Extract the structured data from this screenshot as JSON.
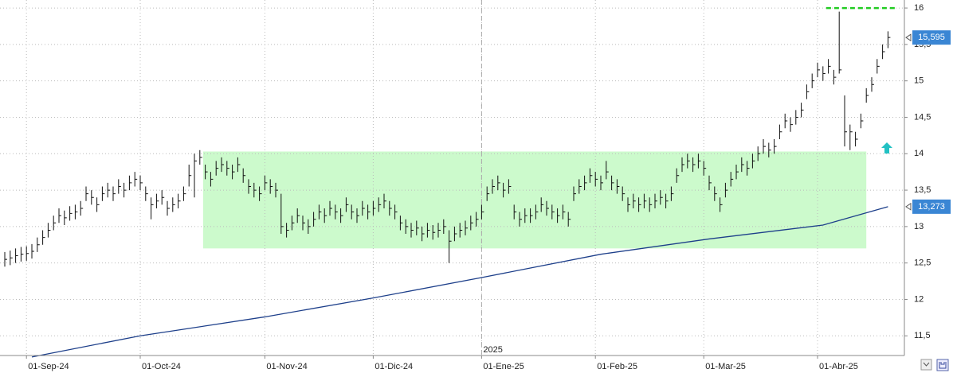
{
  "chart_data": {
    "type": "ohlc",
    "categories": [
      null,
      null,
      null,
      null,
      "01-Sep-24",
      null,
      null,
      null,
      null,
      null,
      null,
      null,
      null,
      null,
      null,
      null,
      null,
      null,
      null,
      null,
      null,
      null,
      null,
      null,
      null,
      "01-Oct-24",
      null,
      null,
      null,
      null,
      null,
      null,
      null,
      null,
      null,
      null,
      null,
      null,
      null,
      null,
      null,
      null,
      null,
      null,
      null,
      null,
      null,
      null,
      "01-Nov-24",
      null,
      null,
      null,
      null,
      null,
      null,
      null,
      null,
      null,
      null,
      null,
      null,
      null,
      null,
      null,
      null,
      null,
      null,
      null,
      "01-Dic-24",
      null,
      null,
      null,
      null,
      null,
      null,
      null,
      null,
      null,
      null,
      null,
      null,
      null,
      null,
      null,
      null,
      null,
      null,
      null,
      "01-Ene-25",
      null,
      null,
      null,
      null,
      null,
      null,
      null,
      null,
      null,
      null,
      null,
      null,
      null,
      null,
      null,
      null,
      null,
      null,
      null,
      null,
      "01-Feb-25",
      null,
      null,
      null,
      null,
      null,
      null,
      null,
      null,
      null,
      null,
      null,
      null,
      null,
      null,
      null,
      null,
      null,
      null,
      null,
      "01-Mar-25",
      null,
      null,
      null,
      null,
      null,
      null,
      null,
      null,
      null,
      null,
      null,
      null,
      null,
      null,
      null,
      null,
      null,
      null,
      null,
      null,
      "01-Abr-25",
      null,
      null,
      null,
      null,
      null,
      null,
      null,
      null,
      null,
      null,
      null,
      null
    ],
    "year_label": "2025",
    "price": {
      "color": "#111111",
      "high": [
        12.65,
        12.67,
        12.7,
        12.72,
        12.73,
        12.76,
        12.85,
        12.95,
        13.05,
        13.15,
        13.25,
        13.22,
        13.28,
        13.3,
        13.35,
        13.55,
        13.5,
        13.4,
        13.55,
        13.6,
        13.55,
        13.65,
        13.6,
        13.7,
        13.75,
        13.7,
        13.55,
        13.4,
        13.45,
        13.5,
        13.35,
        13.4,
        13.45,
        13.55,
        13.85,
        14.0,
        14.05,
        13.85,
        13.75,
        13.9,
        13.95,
        13.9,
        13.85,
        13.95,
        13.8,
        13.65,
        13.6,
        13.55,
        13.7,
        13.65,
        13.6,
        13.45,
        13.05,
        13.15,
        13.25,
        13.15,
        13.1,
        13.2,
        13.3,
        13.25,
        13.35,
        13.3,
        13.25,
        13.4,
        13.3,
        13.25,
        13.35,
        13.3,
        13.35,
        13.4,
        13.45,
        13.35,
        13.3,
        13.15,
        13.1,
        13.05,
        13.08,
        13.0,
        13.05,
        13.02,
        13.05,
        13.1,
        12.95,
        13.0,
        13.05,
        13.08,
        13.15,
        13.2,
        13.3,
        13.55,
        13.65,
        13.7,
        13.6,
        13.65,
        13.3,
        13.2,
        13.25,
        13.25,
        13.3,
        13.4,
        13.35,
        13.3,
        13.25,
        13.3,
        13.2,
        13.55,
        13.65,
        13.7,
        13.8,
        13.75,
        13.7,
        13.9,
        13.7,
        13.65,
        13.55,
        13.4,
        13.45,
        13.4,
        13.45,
        13.4,
        13.45,
        13.5,
        13.45,
        13.55,
        13.8,
        13.95,
        14.0,
        13.95,
        14.0,
        13.9,
        13.7,
        13.55,
        13.4,
        13.6,
        13.75,
        13.85,
        13.95,
        13.9,
        14.0,
        14.1,
        14.2,
        14.15,
        14.2,
        14.4,
        14.55,
        14.5,
        14.6,
        14.7,
        14.95,
        15.1,
        15.25,
        15.2,
        15.3,
        15.15,
        15.95,
        14.8,
        14.4,
        14.3,
        14.55,
        14.9,
        15.05,
        15.3,
        15.5,
        15.68
      ],
      "low": [
        12.45,
        12.47,
        12.5,
        12.52,
        12.53,
        12.56,
        12.65,
        12.75,
        12.85,
        12.95,
        13.05,
        13.02,
        13.08,
        13.1,
        13.15,
        13.35,
        13.3,
        13.2,
        13.35,
        13.4,
        13.35,
        13.45,
        13.4,
        13.5,
        13.55,
        13.5,
        13.35,
        13.1,
        13.25,
        13.3,
        13.15,
        13.2,
        13.25,
        13.35,
        13.55,
        13.4,
        13.85,
        13.65,
        13.55,
        13.7,
        13.75,
        13.7,
        13.65,
        13.75,
        13.6,
        13.45,
        13.4,
        13.35,
        13.5,
        13.45,
        13.4,
        12.9,
        12.85,
        12.95,
        13.05,
        12.95,
        12.9,
        13.0,
        13.1,
        13.05,
        13.15,
        13.1,
        13.05,
        13.2,
        13.1,
        13.05,
        13.15,
        13.1,
        13.15,
        13.2,
        13.25,
        13.15,
        13.1,
        12.95,
        12.9,
        12.85,
        12.88,
        12.8,
        12.85,
        12.82,
        12.85,
        12.9,
        12.5,
        12.8,
        12.85,
        12.88,
        12.95,
        13.0,
        13.1,
        13.35,
        13.45,
        13.5,
        13.4,
        13.45,
        13.1,
        13.0,
        13.05,
        13.05,
        13.1,
        13.2,
        13.15,
        13.1,
        13.05,
        13.1,
        13.0,
        13.35,
        13.45,
        13.5,
        13.6,
        13.55,
        13.5,
        13.65,
        13.5,
        13.45,
        13.35,
        13.2,
        13.25,
        13.2,
        13.25,
        13.2,
        13.25,
        13.3,
        13.25,
        13.35,
        13.6,
        13.75,
        13.8,
        13.75,
        13.8,
        13.7,
        13.5,
        13.35,
        13.2,
        13.4,
        13.55,
        13.65,
        13.75,
        13.7,
        13.8,
        13.9,
        14.0,
        13.95,
        14.0,
        14.2,
        14.35,
        14.3,
        14.4,
        14.5,
        14.75,
        14.9,
        15.05,
        15.0,
        15.1,
        14.95,
        15.1,
        14.1,
        14.05,
        14.1,
        14.35,
        14.7,
        14.85,
        15.1,
        15.3,
        15.45
      ],
      "close": [
        12.55,
        12.57,
        12.6,
        12.62,
        12.63,
        12.66,
        12.75,
        12.85,
        12.95,
        13.05,
        13.15,
        13.12,
        13.18,
        13.2,
        13.25,
        13.45,
        13.4,
        13.3,
        13.45,
        13.5,
        13.45,
        13.55,
        13.5,
        13.6,
        13.65,
        13.6,
        13.45,
        13.3,
        13.35,
        13.4,
        13.25,
        13.3,
        13.35,
        13.45,
        13.7,
        13.9,
        13.95,
        13.75,
        13.65,
        13.8,
        13.85,
        13.8,
        13.75,
        13.85,
        13.7,
        13.55,
        13.5,
        13.45,
        13.6,
        13.55,
        13.5,
        13.0,
        12.95,
        13.05,
        13.15,
        13.05,
        13.0,
        13.1,
        13.2,
        13.15,
        13.25,
        13.2,
        13.15,
        13.3,
        13.2,
        13.15,
        13.25,
        13.2,
        13.25,
        13.3,
        13.35,
        13.25,
        13.2,
        13.05,
        13.0,
        12.95,
        12.98,
        12.9,
        12.95,
        12.92,
        12.95,
        13.0,
        12.8,
        12.9,
        12.95,
        12.98,
        13.05,
        13.1,
        13.2,
        13.45,
        13.55,
        13.6,
        13.5,
        13.55,
        13.2,
        13.1,
        13.15,
        13.15,
        13.2,
        13.3,
        13.25,
        13.2,
        13.15,
        13.2,
        13.1,
        13.45,
        13.55,
        13.6,
        13.7,
        13.65,
        13.6,
        13.75,
        13.6,
        13.55,
        13.45,
        13.3,
        13.35,
        13.3,
        13.35,
        13.3,
        13.35,
        13.4,
        13.35,
        13.45,
        13.7,
        13.85,
        13.9,
        13.85,
        13.9,
        13.8,
        13.6,
        13.45,
        13.3,
        13.5,
        13.65,
        13.75,
        13.85,
        13.8,
        13.9,
        14.0,
        14.1,
        14.05,
        14.1,
        14.3,
        14.45,
        14.4,
        14.5,
        14.6,
        14.85,
        15.0,
        15.15,
        15.1,
        15.2,
        15.05,
        15.15,
        14.3,
        14.3,
        14.2,
        14.45,
        14.8,
        14.95,
        15.2,
        15.4,
        15.595
      ],
      "close_label": "15,595"
    },
    "ma": {
      "color": "#1d3f8a",
      "x": [
        5,
        25,
        48,
        68,
        88,
        110,
        130,
        151,
        163
      ],
      "values": [
        11.21,
        11.5,
        11.76,
        12.02,
        12.3,
        12.62,
        12.83,
        13.02,
        13.273
      ],
      "value_label": "13,273"
    },
    "zone": {
      "color": "#ccfacc",
      "ylim": [
        12.7,
        14.03
      ],
      "x": [
        36.6,
        159
      ]
    },
    "target": {
      "color": "#22cc22",
      "value": 16,
      "x": [
        151.6,
        164.6
      ]
    },
    "ylim": [
      11.23,
      16.11
    ],
    "yticks": [
      {
        "value": 11.5,
        "label": "11,5"
      },
      12,
      {
        "value": 12.5,
        "label": "12,5"
      },
      13,
      {
        "value": 13.5,
        "label": "13,5"
      },
      14,
      {
        "value": 14.5,
        "label": "14,5"
      },
      15,
      {
        "value": 15.5,
        "label": "15,5"
      },
      16
    ],
    "grid": true
  }
}
